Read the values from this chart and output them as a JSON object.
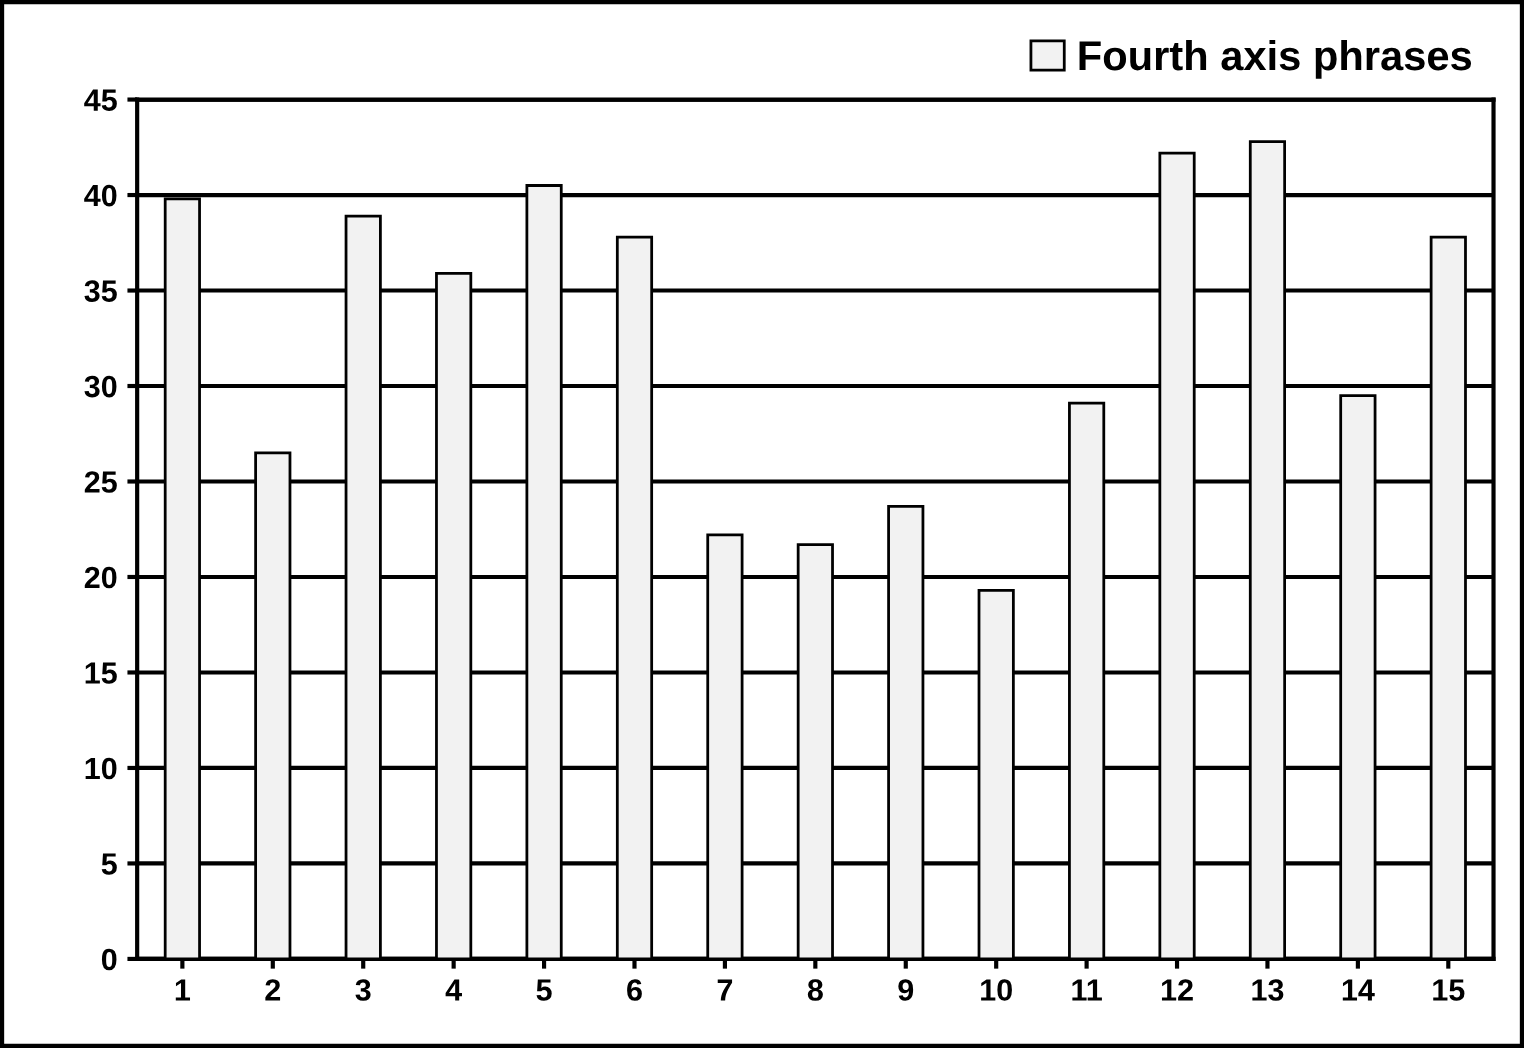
{
  "chart_data": {
    "type": "bar",
    "categories": [
      "1",
      "2",
      "3",
      "4",
      "5",
      "6",
      "7",
      "8",
      "9",
      "10",
      "11",
      "12",
      "13",
      "14",
      "15"
    ],
    "series": [
      {
        "name": "Fourth axis phrases",
        "color": "#f2f2f2",
        "values": [
          39.8,
          26.5,
          38.9,
          35.9,
          40.5,
          37.8,
          22.2,
          21.7,
          23.7,
          19.3,
          29.1,
          42.2,
          42.8,
          29.5,
          37.8
        ]
      }
    ],
    "ylim": [
      0,
      45
    ],
    "yticks": [
      0,
      5,
      10,
      15,
      20,
      25,
      30,
      35,
      40,
      45
    ],
    "grid": "y",
    "legend": "top right"
  }
}
